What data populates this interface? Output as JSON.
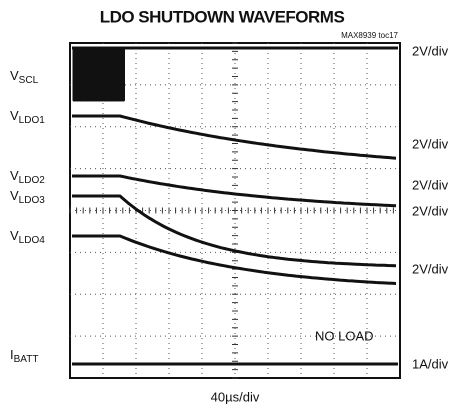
{
  "title": "LDO SHUTDOWN WAVEFORMS",
  "figure_id": "MAX8939 toc17",
  "traces": [
    {
      "symbol": "V",
      "subscript": "SCL",
      "scale": "2V/div"
    },
    {
      "symbol": "V",
      "subscript": "LDO1",
      "scale": "2V/div"
    },
    {
      "symbol": "V",
      "subscript": "LDO2",
      "scale": "2V/div"
    },
    {
      "symbol": "V",
      "subscript": "LDO3",
      "scale": "2V/div"
    },
    {
      "symbol": "V",
      "subscript": "LDO4",
      "scale": "2V/div"
    },
    {
      "symbol": "I",
      "subscript": "BATT",
      "scale": "1A/div"
    }
  ],
  "annotation": "NO LOAD",
  "timebase": "40µs/div"
}
